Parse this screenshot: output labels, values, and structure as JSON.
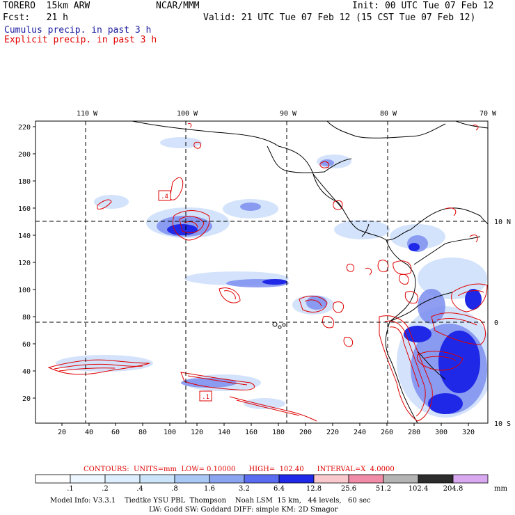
{
  "header": {
    "model": "TORERO  15km ARW",
    "org": "NCAR/MMM",
    "init": "Init: 00 UTC Tue 07 Feb 12",
    "fcst": "Fcst:   21 h",
    "valid": "Valid: 21 UTC Tue 07 Feb 12 (15 CST Tue 07 Feb 12)",
    "cumulus": "Cumulus precip. in past 3 h",
    "explicit": "Explicit precip. in past 3 h"
  },
  "axes": {
    "top_lon": [
      "110 W",
      "100 W",
      "90 W",
      "80 W",
      "70 W"
    ],
    "right_lat": [
      "10 N",
      "0",
      "10 S"
    ],
    "y_ticks": [
      "220",
      "200",
      "180",
      "160",
      "140",
      "120",
      "100",
      "80",
      "60",
      "40",
      "20"
    ],
    "x_ticks": [
      "20",
      "40",
      "60",
      "80",
      "100",
      "120",
      "140",
      "160",
      "180",
      "200",
      "220",
      "240",
      "260",
      "280",
      "300",
      "320"
    ]
  },
  "contour_info": {
    "text": "CONTOURS:  UNITS=mm  LOW= 0.10000      HIGH=  102.40      INTERVAL=X  4.0000"
  },
  "contour_labels": [
    ".4",
    ".1"
  ],
  "legend": {
    "unit": "mm",
    "levels": [
      ".1",
      ".2",
      ".4",
      ".8",
      "1.6",
      "3.2",
      "6.4",
      "12.8",
      "25.6",
      "51.2",
      "102.4",
      "204.8"
    ],
    "colors": [
      "#ffffff",
      "#eef6ff",
      "#ddeeff",
      "#cce4fa",
      "#a9c8f5",
      "#8aa4f0",
      "#5a6cf0",
      "#1e28e6",
      "#f8c8cc",
      "#f08ca8",
      "#b4b4b4",
      "#2c2c2c",
      "#d8a8f0"
    ]
  },
  "footer": {
    "line1": "Model Info: V3.3.1    Tiedtke YSU PBL  Thompson    Noah LSM  15 km,   44 levels,   60 sec",
    "line2": "LW: Godd SW: Goddard DIFF: simple KM: 2D Smagor"
  }
}
